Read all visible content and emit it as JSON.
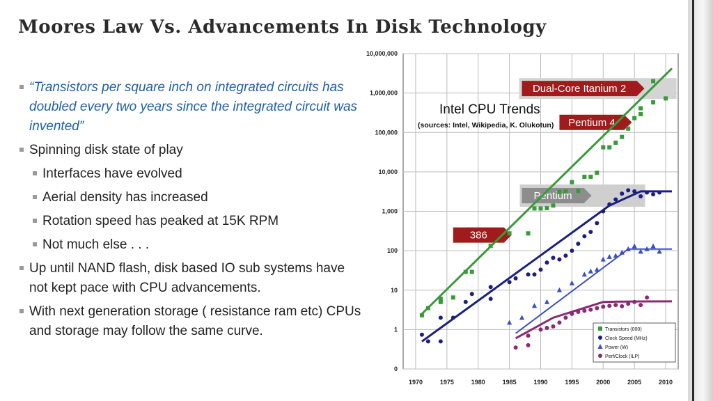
{
  "slide": {
    "title": "Moores Law Vs. Advancements In Disk Technology",
    "bullets": [
      {
        "level": 1,
        "style": "quote",
        "text": "“Transistors per square inch on integrated circuits has doubled every two years since the integrated circuit was invented”"
      },
      {
        "level": 1,
        "style": "normal",
        "text": "Spinning disk state of play"
      },
      {
        "level": 2,
        "style": "normal",
        "text": "Interfaces have evolved"
      },
      {
        "level": 2,
        "style": "normal",
        "text": "Aerial density has increased"
      },
      {
        "level": 2,
        "style": "normal",
        "text": "Rotation speed has peaked at 15K RPM"
      },
      {
        "level": 2,
        "style": "normal",
        "text": "Not much else . . ."
      },
      {
        "level": 1,
        "style": "normal",
        "text": "Up until NAND flash, disk based IO sub systems have not kept pace with CPU advancements."
      },
      {
        "level": 1,
        "style": "normal",
        "text": "With next generation storage ( resistance ram etc) CPUs and storage may follow the same curve."
      }
    ]
  },
  "chart_data": {
    "type": "scatter",
    "title": "Intel CPU Trends",
    "subtitle": "(sources: Intel, Wikipedia, K. Olukotun)",
    "xlabel": "",
    "ylabel": "",
    "y_scale": "log",
    "xlim": [
      1968,
      2012
    ],
    "ylim": [
      0.1,
      10000000
    ],
    "x_ticks": [
      "1970",
      "1975",
      "1980",
      "1985",
      "1990",
      "1995",
      "2000",
      "2005",
      "2010"
    ],
    "y_ticks": [
      {
        "value": 0.1,
        "label": "0"
      },
      {
        "value": 1,
        "label": "1"
      },
      {
        "value": 10,
        "label": "10"
      },
      {
        "value": 100,
        "label": "100"
      },
      {
        "value": 1000,
        "label": "1,000"
      },
      {
        "value": 10000,
        "label": "10,000"
      },
      {
        "value": 100000,
        "label": "100,000"
      },
      {
        "value": 1000000,
        "label": "1,000,000"
      },
      {
        "value": 10000000,
        "label": "10,000,000"
      }
    ],
    "grid": true,
    "legend": "bottom-right",
    "annotations": [
      {
        "label": "Dual-Core Itanium 2",
        "x": 1987,
        "y": 1300000,
        "style": "red"
      },
      {
        "label": "Pentium 4",
        "x": 1993,
        "y": 180000,
        "style": "red"
      },
      {
        "label": "Pentium",
        "x": 1987,
        "y": 2500,
        "style": "grey"
      },
      {
        "label": "386",
        "x": 1976,
        "y": 250,
        "style": "red"
      }
    ],
    "series": [
      {
        "name": "Transistors (000)",
        "color": "#3a9a3a",
        "marker": "square",
        "points": [
          [
            1971,
            2.3
          ],
          [
            1972,
            3.5
          ],
          [
            1974,
            5
          ],
          [
            1974,
            6
          ],
          [
            1976,
            6.5
          ],
          [
            1978,
            29
          ],
          [
            1979,
            29
          ],
          [
            1982,
            134
          ],
          [
            1985,
            275
          ],
          [
            1988,
            275
          ],
          [
            1989,
            1180
          ],
          [
            1990,
            1180
          ],
          [
            1991,
            1200
          ],
          [
            1992,
            1400
          ],
          [
            1993,
            3100
          ],
          [
            1994,
            3200
          ],
          [
            1995,
            5500
          ],
          [
            1996,
            3300
          ],
          [
            1997,
            7500
          ],
          [
            1998,
            7500
          ],
          [
            1999,
            9500
          ],
          [
            2000,
            42000
          ],
          [
            2001,
            42000
          ],
          [
            2002,
            55000
          ],
          [
            2003,
            77000
          ],
          [
            2004,
            125000
          ],
          [
            2005,
            230000
          ],
          [
            2006,
            291000
          ],
          [
            2006,
            410000
          ],
          [
            2008,
            580000
          ],
          [
            2008,
            2000000
          ],
          [
            2010,
            730000
          ]
        ],
        "trend": [
          [
            1971,
            2.5
          ],
          [
            2011,
            4200000
          ]
        ]
      },
      {
        "name": "Clock Speed (MHz)",
        "color": "#1a1f80",
        "marker": "circle",
        "points": [
          [
            1971,
            0.74
          ],
          [
            1972,
            0.5
          ],
          [
            1974,
            0.5
          ],
          [
            1974,
            2
          ],
          [
            1976,
            2
          ],
          [
            1978,
            5
          ],
          [
            1979,
            8
          ],
          [
            1982,
            6
          ],
          [
            1982,
            12
          ],
          [
            1985,
            16
          ],
          [
            1986,
            20
          ],
          [
            1988,
            25
          ],
          [
            1989,
            25
          ],
          [
            1990,
            33
          ],
          [
            1991,
            50
          ],
          [
            1992,
            66
          ],
          [
            1993,
            60
          ],
          [
            1994,
            75
          ],
          [
            1995,
            100
          ],
          [
            1996,
            150
          ],
          [
            1997,
            233
          ],
          [
            1998,
            300
          ],
          [
            1999,
            500
          ],
          [
            2000,
            1000
          ],
          [
            2001,
            1500
          ],
          [
            2002,
            2000
          ],
          [
            2003,
            2800
          ],
          [
            2004,
            3400
          ],
          [
            2005,
            3200
          ],
          [
            2006,
            2400
          ],
          [
            2007,
            3000
          ],
          [
            2008,
            2700
          ],
          [
            2009,
            3000
          ]
        ],
        "trend": [
          [
            1971,
            0.5
          ],
          [
            2001,
            1400
          ],
          [
            2006,
            3200
          ],
          [
            2011,
            3200
          ]
        ]
      },
      {
        "name": "Power (W)",
        "color": "#3a4ec8",
        "marker": "triangle",
        "points": [
          [
            1985,
            1.5
          ],
          [
            1987,
            2
          ],
          [
            1989,
            4
          ],
          [
            1991,
            5
          ],
          [
            1993,
            10
          ],
          [
            1995,
            15
          ],
          [
            1997,
            25
          ],
          [
            1998,
            30
          ],
          [
            1999,
            33
          ],
          [
            2000,
            60
          ],
          [
            2001,
            70
          ],
          [
            2002,
            75
          ],
          [
            2003,
            90
          ],
          [
            2004,
            110
          ],
          [
            2005,
            130
          ],
          [
            2006,
            95
          ],
          [
            2007,
            110
          ],
          [
            2008,
            130
          ],
          [
            2009,
            95
          ]
        ],
        "trend": [
          [
            1986,
            0.8
          ],
          [
            2004,
            110
          ],
          [
            2011,
            110
          ]
        ]
      },
      {
        "name": "Perf/Clock (ILP)",
        "color": "#8a2a70",
        "marker": "circle",
        "points": [
          [
            1986,
            0.35
          ],
          [
            1988,
            0.4
          ],
          [
            1988,
            0.7
          ],
          [
            1990,
            1
          ],
          [
            1991,
            1.1
          ],
          [
            1992,
            1.2
          ],
          [
            1993,
            1.5
          ],
          [
            1994,
            2
          ],
          [
            1995,
            2.5
          ],
          [
            1996,
            2.8
          ],
          [
            1997,
            3
          ],
          [
            1998,
            3.2
          ],
          [
            1999,
            3.5
          ],
          [
            2000,
            3.8
          ],
          [
            2001,
            4
          ],
          [
            2002,
            4.2
          ],
          [
            2003,
            3.9
          ],
          [
            2004,
            4.5
          ],
          [
            2005,
            5
          ],
          [
            2006,
            4.2
          ],
          [
            2007,
            6.5
          ]
        ],
        "trend": [
          [
            1986,
            0.6
          ],
          [
            1992,
            2
          ],
          [
            2000,
            5
          ],
          [
            2011,
            5.2
          ]
        ]
      }
    ]
  }
}
